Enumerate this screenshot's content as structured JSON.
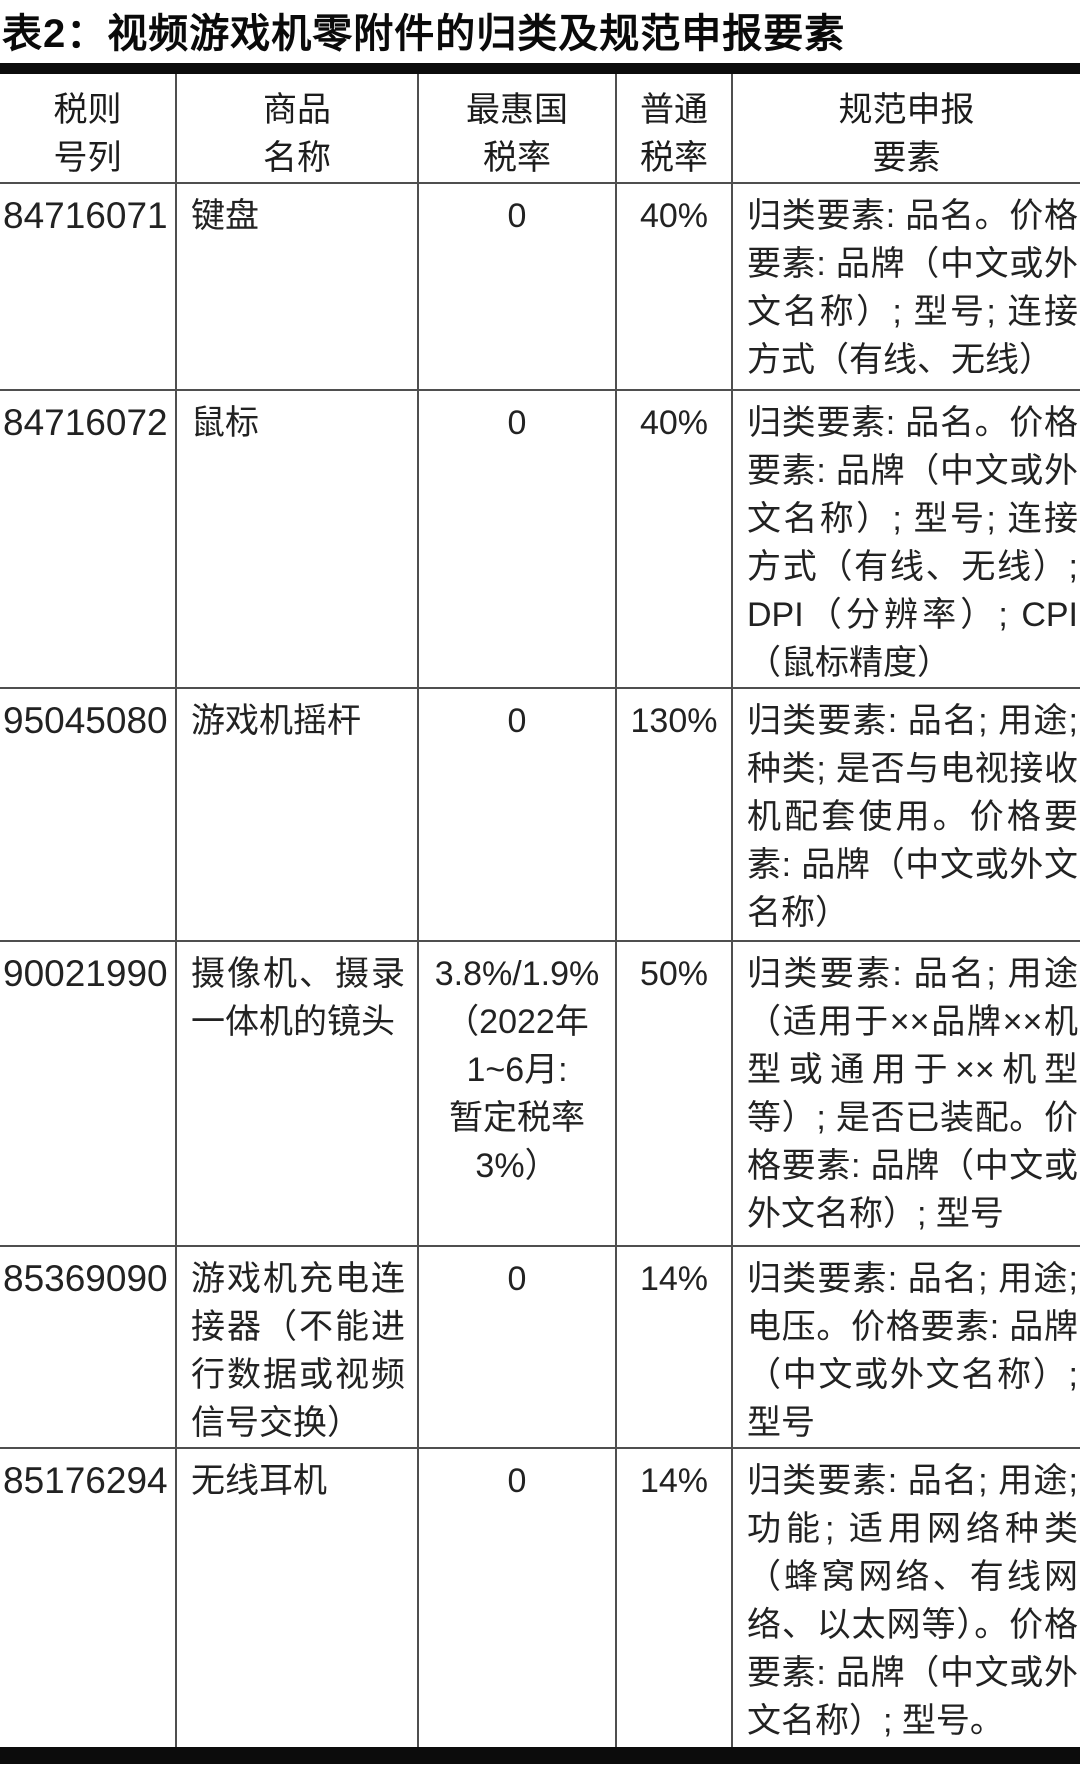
{
  "title": "表2：视频游戏机零附件的归类及规范申报要素",
  "table": {
    "headers": [
      "税则\n号列",
      "商品\n名称",
      "最惠国\n税率",
      "普通\n税率",
      "规范申报\n要素"
    ],
    "rows": [
      {
        "code": "84716071",
        "name": "键盘",
        "mfn": "0",
        "general": "40%",
        "elements": "归类要素: 品名。价格要素: 品牌（中文或外文名称）; 型号; 连接方式（有线、无线）"
      },
      {
        "code": "84716072",
        "name": "鼠标",
        "mfn": "0",
        "general": "40%",
        "elements": "归类要素: 品名。价格要素: 品牌（中文或外文名称）; 型号; 连接方式（有线、无线）; DPI（分辨率）; CPI（鼠标精度）"
      },
      {
        "code": "95045080",
        "name": "游戏机摇杆",
        "mfn": "0",
        "general": "130%",
        "elements": "归类要素: 品名; 用途; 种类; 是否与电视接收机配套使用。价格要素: 品牌（中文或外文名称）"
      },
      {
        "code": "90021990",
        "name": "摄像机、摄录一体机的镜头",
        "mfn": "3.8%/1.9%\n（2022年\n1~6月:\n暂定税率\n3%）",
        "general": "50%",
        "elements": "归类要素: 品名; 用途（适用于××品牌××机型或通用于××机型等）; 是否已装配。价格要素: 品牌（中文或外文名称）; 型号"
      },
      {
        "code": "85369090",
        "name": "游戏机充电连接器（不能进行数据或视频信号交换）",
        "mfn": "0",
        "general": "14%",
        "elements": "归类要素: 品名; 用途; 电压。价格要素: 品牌（中文或外文名称）; 型号"
      },
      {
        "code": "85176294",
        "name": "无线耳机",
        "mfn": "0",
        "general": "14%",
        "elements": "归类要素: 品名; 用途; 功能; 适用网络种类（蜂窝网络、有线网络、以太网等）。价格要素: 品牌（中文或外文名称）; 型号。"
      }
    ]
  }
}
